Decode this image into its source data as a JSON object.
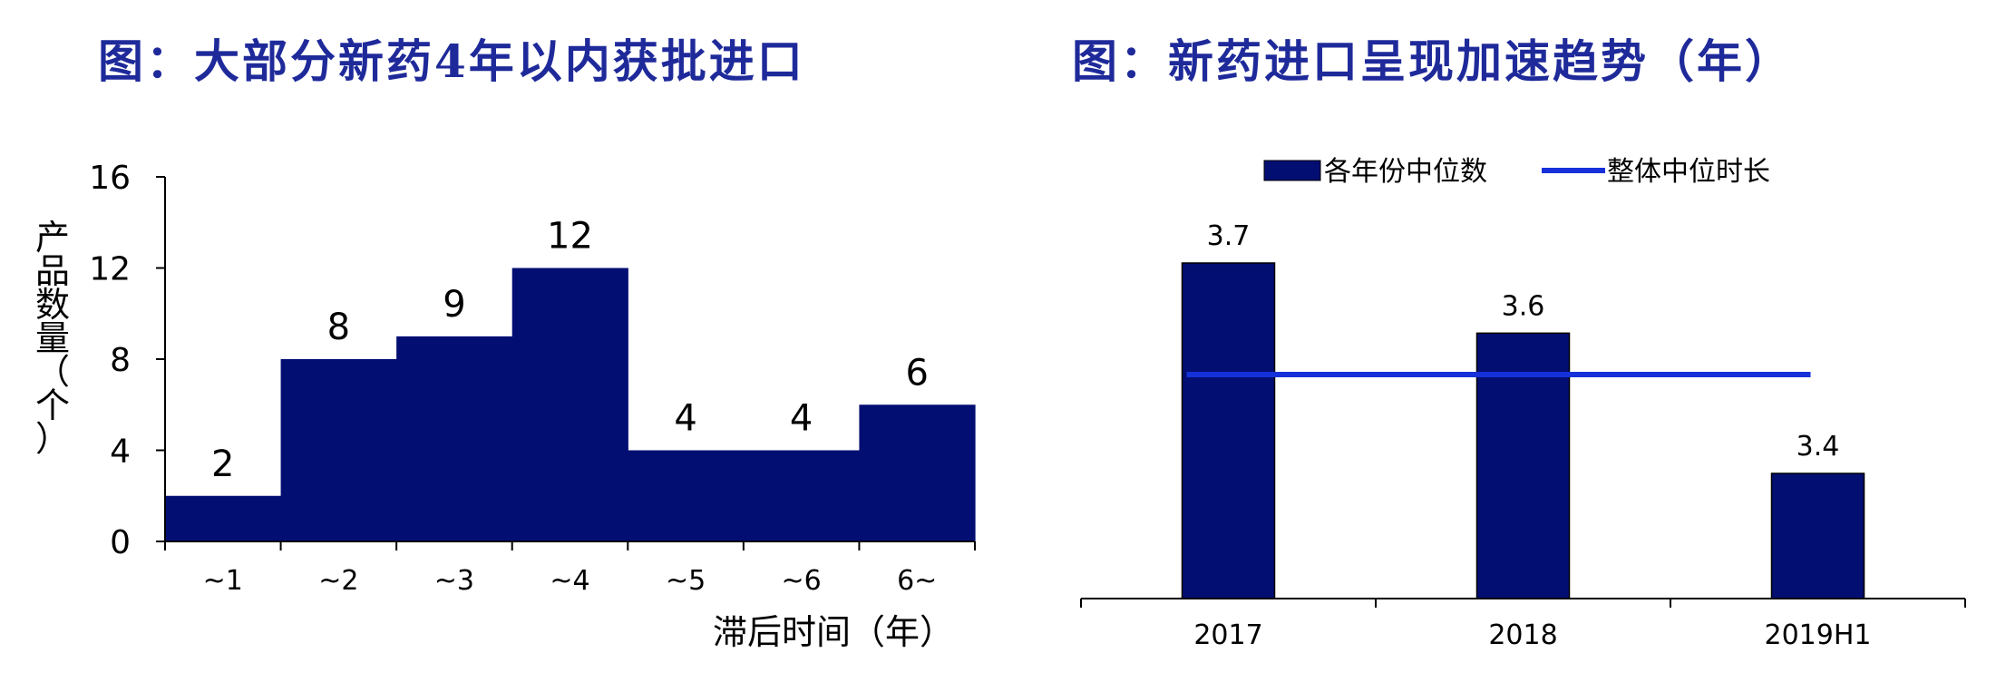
{
  "titles": {
    "left": "图：大部分新药4年以内获批进口",
    "right": "图：新药进口呈现加速趋势（年）"
  },
  "chart_data": [
    {
      "type": "bar",
      "title": "图：大部分新药4年以内获批进口",
      "categories": [
        "~1",
        "~2",
        "~3",
        "~4",
        "~5",
        "~6",
        "6~"
      ],
      "values": [
        2,
        8,
        9,
        12,
        4,
        4,
        6
      ],
      "xlabel": "滞后时间（年）",
      "ylabel": "产品数量（个）",
      "ylim": [
        0,
        16
      ],
      "yticks": [
        "0",
        "4",
        "8",
        "12",
        "16"
      ],
      "bar_color": "#030E73",
      "grid": false
    },
    {
      "type": "bar",
      "title": "图：新药进口呈现加速趋势（年）",
      "categories": [
        "2017",
        "2018",
        "2019H1"
      ],
      "series": [
        {
          "name": "各年份中位数",
          "values": [
            3.7,
            3.6,
            3.4
          ],
          "color": "#030E73"
        },
        {
          "name": "整体中位时长",
          "kind": "line",
          "value": 3.6,
          "color": "#1631D9"
        }
      ],
      "legend": "top",
      "grid": false
    }
  ]
}
